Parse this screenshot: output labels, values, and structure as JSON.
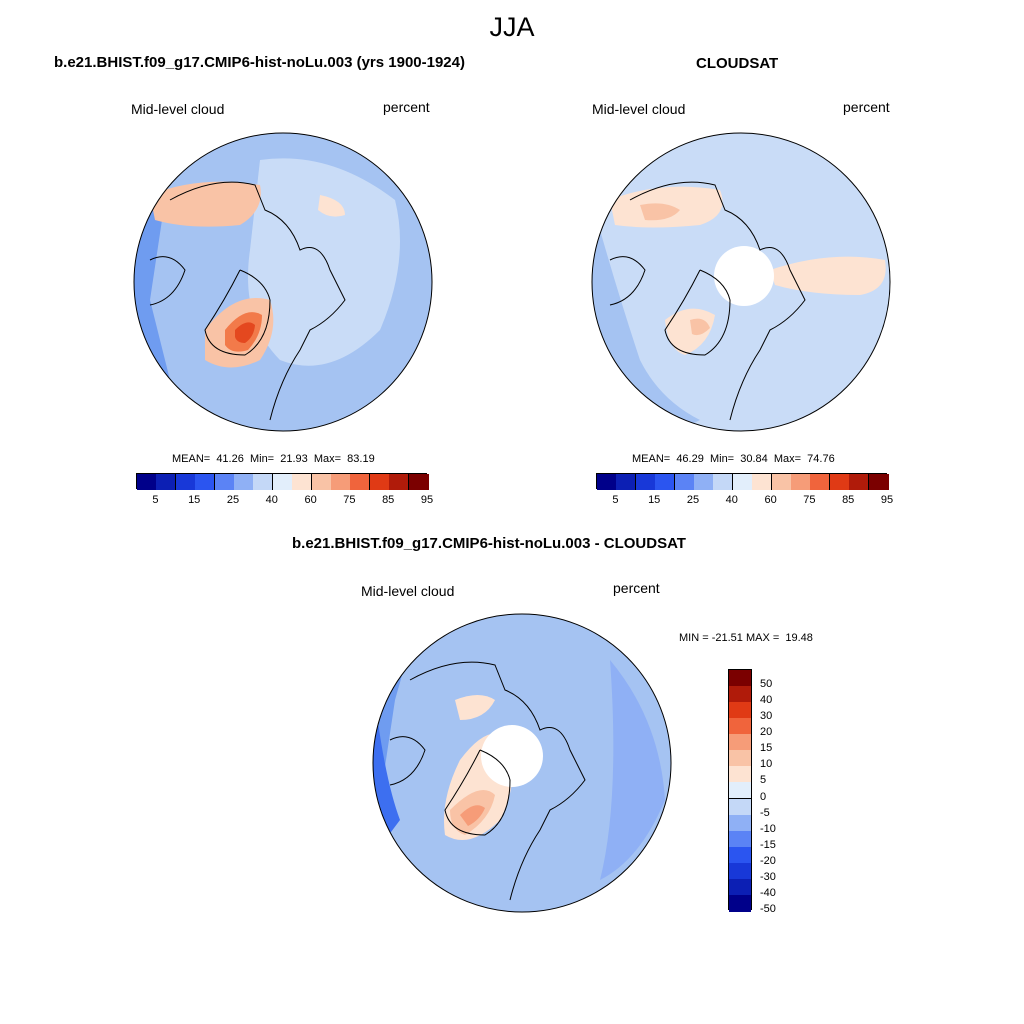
{
  "figure": {
    "title": "JJA",
    "panel1": {
      "title": "b.e21.BHIST.f09_g17.CMIP6-hist-noLu.003 (yrs 1900-1924)",
      "variable": "Mid-level cloud",
      "units": "percent",
      "stats": "MEAN=  41.26  Min=  21.93  Max=  83.19"
    },
    "panel2": {
      "title": "CLOUDSAT",
      "variable": "Mid-level cloud",
      "units": "percent",
      "stats": "MEAN=  46.29  Min=  30.84  Max=  74.76"
    },
    "panel3": {
      "title": "b.e21.BHIST.f09_g17.CMIP6-hist-noLu.003 - CLOUDSAT",
      "variable": "Mid-level cloud",
      "units": "percent",
      "stats": "MIN = -21.51 MAX =  19.48"
    },
    "colorbar_levels": {
      "labels": [
        "5",
        "15",
        "25",
        "40",
        "60",
        "75",
        "85",
        "95"
      ],
      "colors": [
        "#00008a",
        "#0c1fb4",
        "#1838d8",
        "#2b55f0",
        "#5b83f5",
        "#8fb0f5",
        "#c4d8f7",
        "#e2eefb",
        "#fde3d2",
        "#f9c3a6",
        "#f69c78",
        "#f0643c",
        "#e03a15",
        "#b01b0a",
        "#7b0000"
      ]
    },
    "colorbar_diff": {
      "labels": [
        "50",
        "40",
        "30",
        "20",
        "15",
        "10",
        "5",
        "0",
        "-5",
        "-10",
        "-15",
        "-20",
        "-30",
        "-40",
        "-50"
      ],
      "colors": [
        "#7b0000",
        "#b01b0a",
        "#e03a15",
        "#f0643c",
        "#f69c78",
        "#f9c3a6",
        "#fde3d2",
        "#e2eefb",
        "#c4d8f7",
        "#8fb0f5",
        "#5b83f5",
        "#2b55f0",
        "#1838d8",
        "#0c1fb4",
        "#00008a"
      ]
    },
    "map_colors": {
      "water_light": "#c9dcf7",
      "water_mid": "#a5c3f2",
      "water_dark": "#6f9cf0",
      "blue_deep": "#3d6ff0",
      "warm_light": "#fde3d2",
      "warm_mid": "#f9c3a6",
      "warm_strong": "#f27a4a",
      "warm_peak": "#e4481f",
      "outline": "#000000"
    }
  }
}
